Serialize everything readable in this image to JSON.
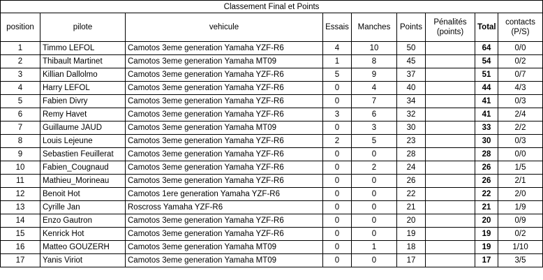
{
  "title": "Classement Final et Points",
  "headers": {
    "position": "position",
    "pilote": "pilote",
    "vehicule": "vehicule",
    "essais": "Essais",
    "manches": "Manches",
    "points": "Points",
    "penalites": "Pénalités (points)",
    "total": "Total",
    "contacts": "contacts (P/S)"
  },
  "rows": [
    {
      "position": "1",
      "pilote": "Timmo LEFOL",
      "vehicule": "Camotos 3eme generation Yamaha YZF-R6",
      "essais": "4",
      "manches": "10",
      "points": "50",
      "penalites": "",
      "total": "64",
      "contacts": "0/0"
    },
    {
      "position": "2",
      "pilote": "Thibault Martinet",
      "vehicule": "Camotos 3eme generation Yamaha MT09",
      "essais": "1",
      "manches": "8",
      "points": "45",
      "penalites": "",
      "total": "54",
      "contacts": "0/2"
    },
    {
      "position": "3",
      "pilote": "Killian Dallolmo",
      "vehicule": "Camotos 3eme generation Yamaha YZF-R6",
      "essais": "5",
      "manches": "9",
      "points": "37",
      "penalites": "",
      "total": "51",
      "contacts": "0/7"
    },
    {
      "position": "4",
      "pilote": "Harry LEFOL",
      "vehicule": "Camotos 3eme generation Yamaha YZF-R6",
      "essais": "0",
      "manches": "4",
      "points": "40",
      "penalites": "",
      "total": "44",
      "contacts": "4/3"
    },
    {
      "position": "5",
      "pilote": "Fabien Divry",
      "vehicule": "Camotos 3eme generation Yamaha YZF-R6",
      "essais": "0",
      "manches": "7",
      "points": "34",
      "penalites": "",
      "total": "41",
      "contacts": "0/3"
    },
    {
      "position": "6",
      "pilote": "Remy Havet",
      "vehicule": "Camotos 3eme generation Yamaha YZF-R6",
      "essais": "3",
      "manches": "6",
      "points": "32",
      "penalites": "",
      "total": "41",
      "contacts": "2/4"
    },
    {
      "position": "7",
      "pilote": "Guillaume JAUD",
      "vehicule": "Camotos 3eme generation Yamaha MT09",
      "essais": "0",
      "manches": "3",
      "points": "30",
      "penalites": "",
      "total": "33",
      "contacts": "2/2"
    },
    {
      "position": "8",
      "pilote": "Louis Lejeune",
      "vehicule": "Camotos 3eme generation Yamaha YZF-R6",
      "essais": "2",
      "manches": "5",
      "points": "23",
      "penalites": "",
      "total": "30",
      "contacts": "0/3"
    },
    {
      "position": "9",
      "pilote": "Sebastien Feuillerat",
      "vehicule": "Camotos 3eme generation Yamaha YZF-R6",
      "essais": "0",
      "manches": "0",
      "points": "28",
      "penalites": "",
      "total": "28",
      "contacts": "0/0"
    },
    {
      "position": "10",
      "pilote": "Fabien_Cougnaud",
      "vehicule": "Camotos 3eme generation Yamaha YZF-R6",
      "essais": "0",
      "manches": "2",
      "points": "24",
      "penalites": "",
      "total": "26",
      "contacts": "1/5"
    },
    {
      "position": "11",
      "pilote": "Mathieu_Morineau",
      "vehicule": "Camotos 3eme generation Yamaha YZF-R6",
      "essais": "0",
      "manches": "0",
      "points": "26",
      "penalites": "",
      "total": "26",
      "contacts": "2/1"
    },
    {
      "position": "12",
      "pilote": "Benoit Hot",
      "vehicule": "Camotos 1ere generation Yamaha YZF-R6",
      "essais": "0",
      "manches": "0",
      "points": "22",
      "penalites": "",
      "total": "22",
      "contacts": "2/0"
    },
    {
      "position": "13",
      "pilote": "Cyrille Jan",
      "vehicule": "Roscross Yamaha YZF-R6",
      "essais": "0",
      "manches": "0",
      "points": "21",
      "penalites": "",
      "total": "21",
      "contacts": "1/9"
    },
    {
      "position": "14",
      "pilote": "Enzo Gautron",
      "vehicule": "Camotos 3eme generation Yamaha YZF-R6",
      "essais": "0",
      "manches": "0",
      "points": "20",
      "penalites": "",
      "total": "20",
      "contacts": "0/9"
    },
    {
      "position": "15",
      "pilote": "Kenrick Hot",
      "vehicule": "Camotos 3eme generation Yamaha YZF-R6",
      "essais": "0",
      "manches": "0",
      "points": "19",
      "penalites": "",
      "total": "19",
      "contacts": "0/2"
    },
    {
      "position": "16",
      "pilote": "Matteo GOUZERH",
      "vehicule": "Camotos 3eme generation Yamaha MT09",
      "essais": "0",
      "manches": "1",
      "points": "18",
      "penalites": "",
      "total": "19",
      "contacts": "1/10"
    },
    {
      "position": "17",
      "pilote": "Yanis Viriot",
      "vehicule": "Camotos 3eme generation Yamaha MT09",
      "essais": "0",
      "manches": "0",
      "points": "17",
      "penalites": "",
      "total": "17",
      "contacts": "3/5"
    }
  ]
}
